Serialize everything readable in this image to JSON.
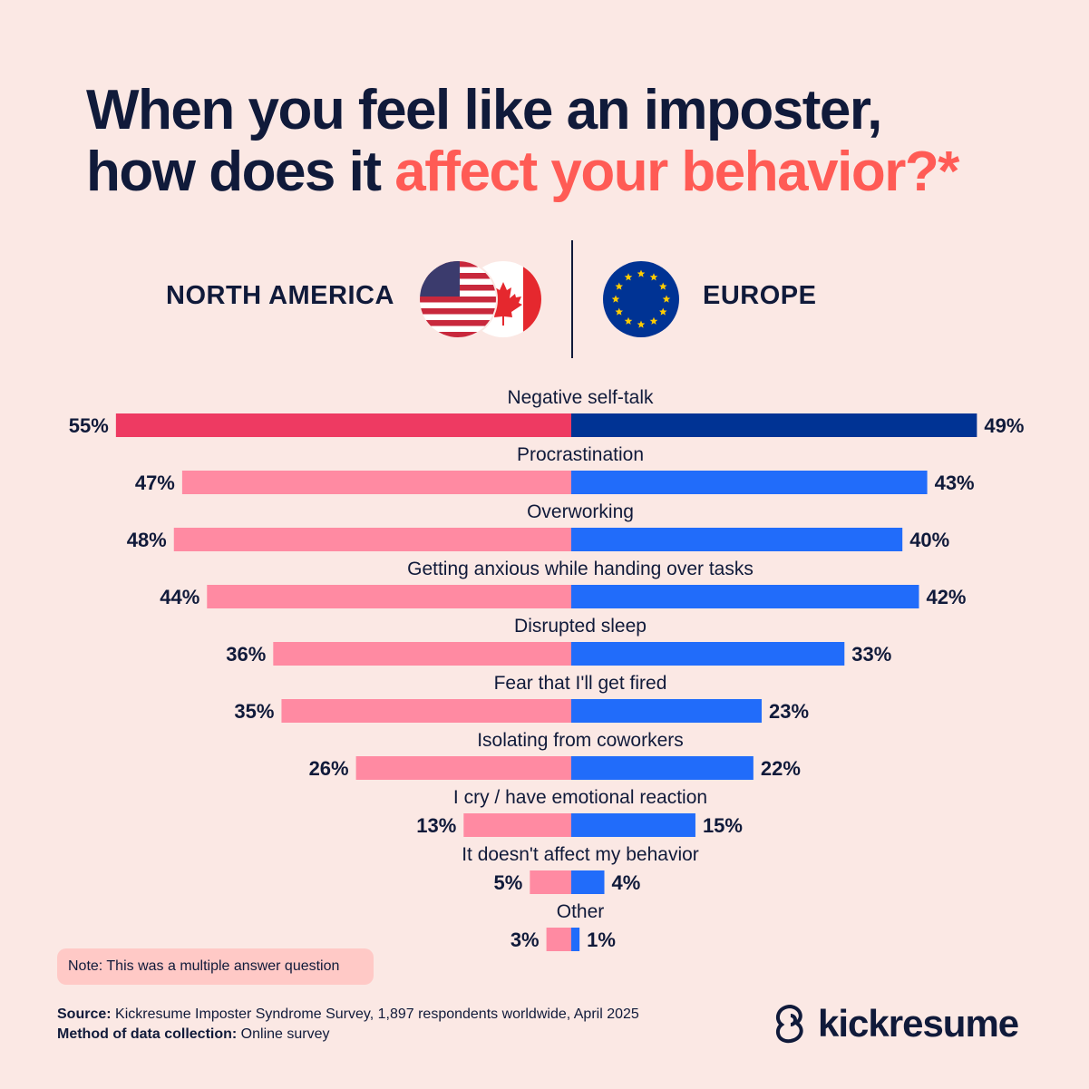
{
  "title": {
    "line1": "When you feel like an imposter,",
    "line2_plain": "how does it ",
    "line2_accent": "affect your behavior?*"
  },
  "regions": {
    "left": "NORTH AMERICA",
    "right": "EUROPE"
  },
  "colors": {
    "background": "#fbe8e4",
    "text": "#101a3a",
    "accent": "#ff5b55",
    "na_highlight": "#ee3a62",
    "na": "#ff8aa2",
    "eu_highlight": "#003394",
    "eu": "#216cfa"
  },
  "chart_data": {
    "type": "bar",
    "orientation": "diverging-horizontal",
    "categories": [
      "Negative self-talk",
      "Procrastination",
      "Overworking",
      "Getting anxious while handing over tasks",
      "Disrupted sleep",
      "Fear that I'll get fired",
      "Isolating from coworkers",
      "I cry / have emotional reaction",
      "It doesn't affect my behavior",
      "Other"
    ],
    "series": [
      {
        "name": "NORTH AMERICA",
        "values": [
          55,
          47,
          48,
          44,
          36,
          35,
          26,
          13,
          5,
          3
        ]
      },
      {
        "name": "EUROPE",
        "values": [
          49,
          43,
          40,
          42,
          33,
          23,
          22,
          15,
          4,
          1
        ]
      }
    ],
    "value_suffix": "%",
    "xlim": [
      0,
      55
    ],
    "grid": false
  },
  "note": "Note: This was a multiple answer question",
  "footer": {
    "source_label": "Source:",
    "source_text": " Kickresume Imposter Syndrome Survey, 1,897 respondents worldwide, April 2025",
    "method_label": "Method of data collection:",
    "method_text": " Online survey"
  },
  "logo": "kickresume"
}
